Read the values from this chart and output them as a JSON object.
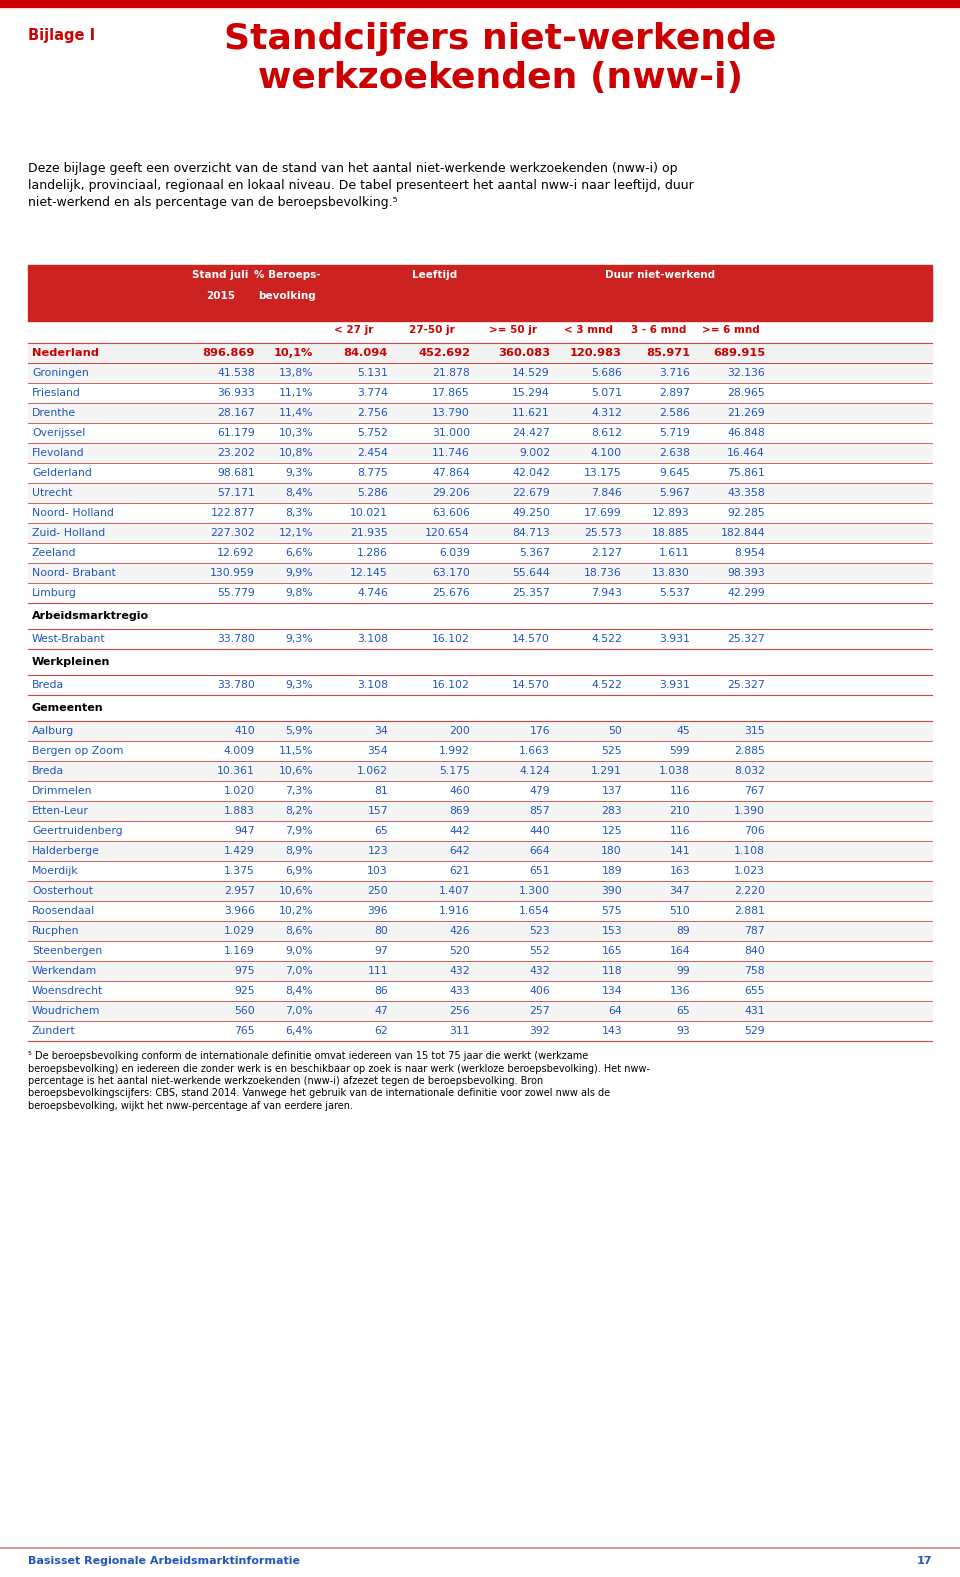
{
  "title_label": "Bijlage I",
  "title_main": "Standcijfers niet-werkende\nwerkzoekenden (nww-i)",
  "intro_text": "Deze bijlage geeft een overzicht van de stand van het aantal niet-werkende werkzoekenden (nww-i) op\nlandelijk, provinciaal, regionaal en lokaal niveau. De tabel presenteert het aantal nww-i naar leeftijd, duur\nniet-werkend en als percentage van de beroepsbevolking.⁵",
  "section_nederland": {
    "label": "Nederland",
    "data": [
      "896.869",
      "10,1%",
      "84.094",
      "452.692",
      "360.083",
      "120.983",
      "85.971",
      "689.915"
    ]
  },
  "provincies": [
    [
      "Groningen",
      "41.538",
      "13,8%",
      "5.131",
      "21.878",
      "14.529",
      "5.686",
      "3.716",
      "32.136"
    ],
    [
      "Friesland",
      "36.933",
      "11,1%",
      "3.774",
      "17.865",
      "15.294",
      "5.071",
      "2.897",
      "28.965"
    ],
    [
      "Drenthe",
      "28.167",
      "11,4%",
      "2.756",
      "13.790",
      "11.621",
      "4.312",
      "2.586",
      "21.269"
    ],
    [
      "Overijssel",
      "61.179",
      "10,3%",
      "5.752",
      "31.000",
      "24.427",
      "8.612",
      "5.719",
      "46.848"
    ],
    [
      "Flevoland",
      "23.202",
      "10,8%",
      "2.454",
      "11.746",
      "9.002",
      "4.100",
      "2.638",
      "16.464"
    ],
    [
      "Gelderland",
      "98.681",
      "9,3%",
      "8.775",
      "47.864",
      "42.042",
      "13.175",
      "9.645",
      "75.861"
    ],
    [
      "Utrecht",
      "57.171",
      "8,4%",
      "5.286",
      "29.206",
      "22.679",
      "7.846",
      "5.967",
      "43.358"
    ],
    [
      "Noord- Holland",
      "122.877",
      "8,3%",
      "10.021",
      "63.606",
      "49.250",
      "17.699",
      "12.893",
      "92.285"
    ],
    [
      "Zuid- Holland",
      "227.302",
      "12,1%",
      "21.935",
      "120.654",
      "84.713",
      "25.573",
      "18.885",
      "182.844"
    ],
    [
      "Zeeland",
      "12.692",
      "6,6%",
      "1.286",
      "6.039",
      "5.367",
      "2.127",
      "1.611",
      "8.954"
    ],
    [
      "Noord- Brabant",
      "130.959",
      "9,9%",
      "12.145",
      "63.170",
      "55.644",
      "18.736",
      "13.830",
      "98.393"
    ],
    [
      "Limburg",
      "55.779",
      "9,8%",
      "4.746",
      "25.676",
      "25.357",
      "7.943",
      "5.537",
      "42.299"
    ]
  ],
  "section_arbeidsmarkt": "Arbeidsmarktregio",
  "arbeidsmarkt": [
    [
      "West-Brabant",
      "33.780",
      "9,3%",
      "3.108",
      "16.102",
      "14.570",
      "4.522",
      "3.931",
      "25.327"
    ]
  ],
  "section_werkpleinen": "Werkpleinen",
  "werkpleinen": [
    [
      "Breda",
      "33.780",
      "9,3%",
      "3.108",
      "16.102",
      "14.570",
      "4.522",
      "3.931",
      "25.327"
    ]
  ],
  "section_gemeenten": "Gemeenten",
  "gemeenten": [
    [
      "Aalburg",
      "410",
      "5,9%",
      "34",
      "200",
      "176",
      "50",
      "45",
      "315"
    ],
    [
      "Bergen op Zoom",
      "4.009",
      "11,5%",
      "354",
      "1.992",
      "1.663",
      "525",
      "599",
      "2.885"
    ],
    [
      "Breda",
      "10.361",
      "10,6%",
      "1.062",
      "5.175",
      "4.124",
      "1.291",
      "1.038",
      "8.032"
    ],
    [
      "Drimmelen",
      "1.020",
      "7,3%",
      "81",
      "460",
      "479",
      "137",
      "116",
      "767"
    ],
    [
      "Etten-Leur",
      "1.883",
      "8,2%",
      "157",
      "869",
      "857",
      "283",
      "210",
      "1.390"
    ],
    [
      "Geertruidenberg",
      "947",
      "7,9%",
      "65",
      "442",
      "440",
      "125",
      "116",
      "706"
    ],
    [
      "Halderberge",
      "1.429",
      "8,9%",
      "123",
      "642",
      "664",
      "180",
      "141",
      "1.108"
    ],
    [
      "Moerdijk",
      "1.375",
      "6,9%",
      "103",
      "621",
      "651",
      "189",
      "163",
      "1.023"
    ],
    [
      "Oosterhout",
      "2.957",
      "10,6%",
      "250",
      "1.407",
      "1.300",
      "390",
      "347",
      "2.220"
    ],
    [
      "Roosendaal",
      "3.966",
      "10,2%",
      "396",
      "1.916",
      "1.654",
      "575",
      "510",
      "2.881"
    ],
    [
      "Rucphen",
      "1.029",
      "8,6%",
      "80",
      "426",
      "523",
      "153",
      "89",
      "787"
    ],
    [
      "Steenbergen",
      "1.169",
      "9,0%",
      "97",
      "520",
      "552",
      "165",
      "164",
      "840"
    ],
    [
      "Werkendam",
      "975",
      "7,0%",
      "111",
      "432",
      "432",
      "118",
      "99",
      "758"
    ],
    [
      "Woensdrecht",
      "925",
      "8,4%",
      "86",
      "433",
      "406",
      "134",
      "136",
      "655"
    ],
    [
      "Woudrichem",
      "560",
      "7,0%",
      "47",
      "256",
      "257",
      "64",
      "65",
      "431"
    ],
    [
      "Zundert",
      "765",
      "6,4%",
      "62",
      "311",
      "392",
      "143",
      "93",
      "529"
    ]
  ],
  "footnote_line1": "⁵ De beroepsbevolking conform de internationale definitie omvat iedereen van 15 tot 75 jaar die werkt (werkzame",
  "footnote_line2": "beroepsbevolking) en iedereen die zonder werk is en beschikbaar op zoek is naar werk (werkloze beroepsbevolking). Het nww-",
  "footnote_line3": "percentage is het aantal niet-werkende werkzoekenden (nww-i) afzezet tegen de beroepsbevolking. Bron",
  "footnote_line4": "beroepsbevolkingscijfers: CBS, stand 2014. Vanwege het gebruik van de internationale definitie voor zowel nww als de",
  "footnote_line5": "beroepsbevolking, wijkt het nww-percentage af van eerdere jaren.",
  "footer_text": "Basisset Regionale Arbeidsmarktinformatie",
  "footer_page": "17",
  "red_color": "#CC0000",
  "blue_color": "#2255BB",
  "header_bg": "#CC2222",
  "header_text": "#FFFFFF",
  "line_color": "#CC4444",
  "divider_color": "#CC4444"
}
